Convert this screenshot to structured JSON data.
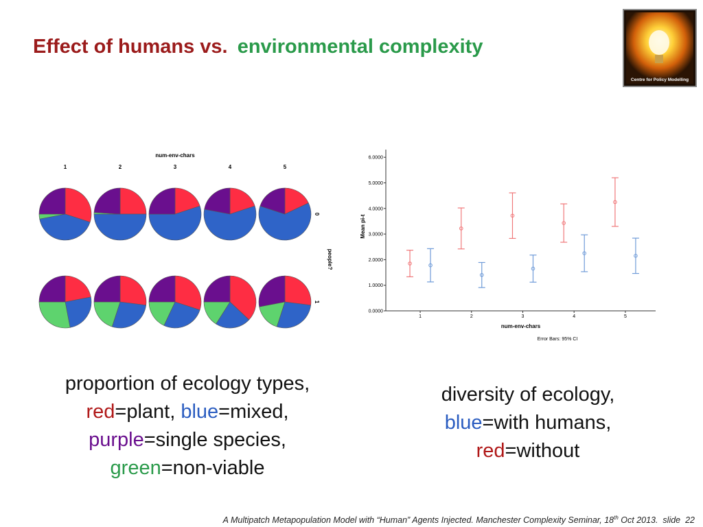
{
  "title": {
    "part1": "Effect of humans vs.",
    "part2": "environmental complexity"
  },
  "logo": {
    "text": "Centre for Policy Modelling"
  },
  "chart_data": [
    {
      "type": "pie-grid",
      "title": "num-env-chars",
      "columns": [
        "1",
        "2",
        "3",
        "4",
        "5"
      ],
      "row_axis_label": "people?",
      "colors": [
        "#fe2d43",
        "#2f64c8",
        "#5ed36e",
        "#6a0f8e"
      ],
      "rows": [
        {
          "label": "0",
          "pies": [
            {
              "values": [
                30,
                42,
                3,
                25
              ]
            },
            {
              "values": [
                25,
                50,
                1,
                24
              ]
            },
            {
              "values": [
                20,
                55,
                0,
                25
              ]
            },
            {
              "values": [
                20,
                58,
                0,
                22
              ]
            },
            {
              "values": [
                18,
                62,
                0,
                20
              ]
            }
          ]
        },
        {
          "label": "1",
          "pies": [
            {
              "values": [
                22,
                25,
                28,
                25
              ]
            },
            {
              "values": [
                27,
                28,
                20,
                25
              ]
            },
            {
              "values": [
                30,
                27,
                18,
                25
              ]
            },
            {
              "values": [
                37,
                22,
                16,
                25
              ]
            },
            {
              "values": [
                27,
                28,
                17,
                28
              ]
            }
          ]
        }
      ]
    },
    {
      "type": "errorbar",
      "x": [
        1,
        2,
        3,
        4,
        5
      ],
      "xlim": [
        0.33,
        5.59
      ],
      "xticks": [
        1,
        2,
        3,
        4,
        5
      ],
      "ylim": [
        0,
        6.3
      ],
      "yticks": [
        {
          "value": 0,
          "label": "0.0000"
        },
        {
          "value": 1,
          "label": "1.0000"
        },
        {
          "value": 2,
          "label": "2.0000"
        },
        {
          "value": 3,
          "label": "3.0000"
        },
        {
          "value": 4,
          "label": "4.0000"
        },
        {
          "value": 5,
          "label": "5.0000"
        },
        {
          "value": 6,
          "label": "6.0000"
        }
      ],
      "x_label": "num-env-chars",
      "y_label": "Mean pi-t",
      "note": "Error Bars: 95% CI",
      "series": [
        {
          "color": "#f0787a",
          "values": [
            1.85,
            3.22,
            3.72,
            3.43,
            4.25
          ],
          "errors": [
            0.52,
            0.8,
            0.89,
            0.75,
            0.95
          ]
        },
        {
          "color": "#6f9bd8",
          "values": [
            1.78,
            1.4,
            1.65,
            2.25,
            2.15
          ],
          "errors": [
            0.65,
            0.49,
            0.53,
            0.72,
            0.69
          ]
        }
      ]
    }
  ],
  "left_caption": [
    [
      {
        "text": "proportion of ecology types,"
      }
    ],
    [
      {
        "text": "red",
        "color": "#b01818"
      },
      {
        "text": "=plant, "
      },
      {
        "text": "blue",
        "color": "#2a5cc0"
      },
      {
        "text": "=mixed,"
      }
    ],
    [
      {
        "text": "purple",
        "color": "#6a0f8e"
      },
      {
        "text": "=single species,"
      }
    ],
    [
      {
        "text": "green",
        "color": "#2a9a4a"
      },
      {
        "text": "=non-viable"
      }
    ]
  ],
  "right_caption": [
    [
      {
        "text": "diversity of ecology,"
      }
    ],
    [
      {
        "text": "blue",
        "color": "#2a5cc0"
      },
      {
        "text": "=with humans,"
      }
    ],
    [
      {
        "text": "red",
        "color": "#b01818"
      },
      {
        "text": "=without"
      }
    ]
  ],
  "footer": {
    "text1": "A Multipatch Metapopulation Model with “Human” Agents Injected. Manchester Complexity Seminar, 18",
    "sup": "th",
    "text2": " Oct 2013.  slide  ",
    "page": 22
  }
}
